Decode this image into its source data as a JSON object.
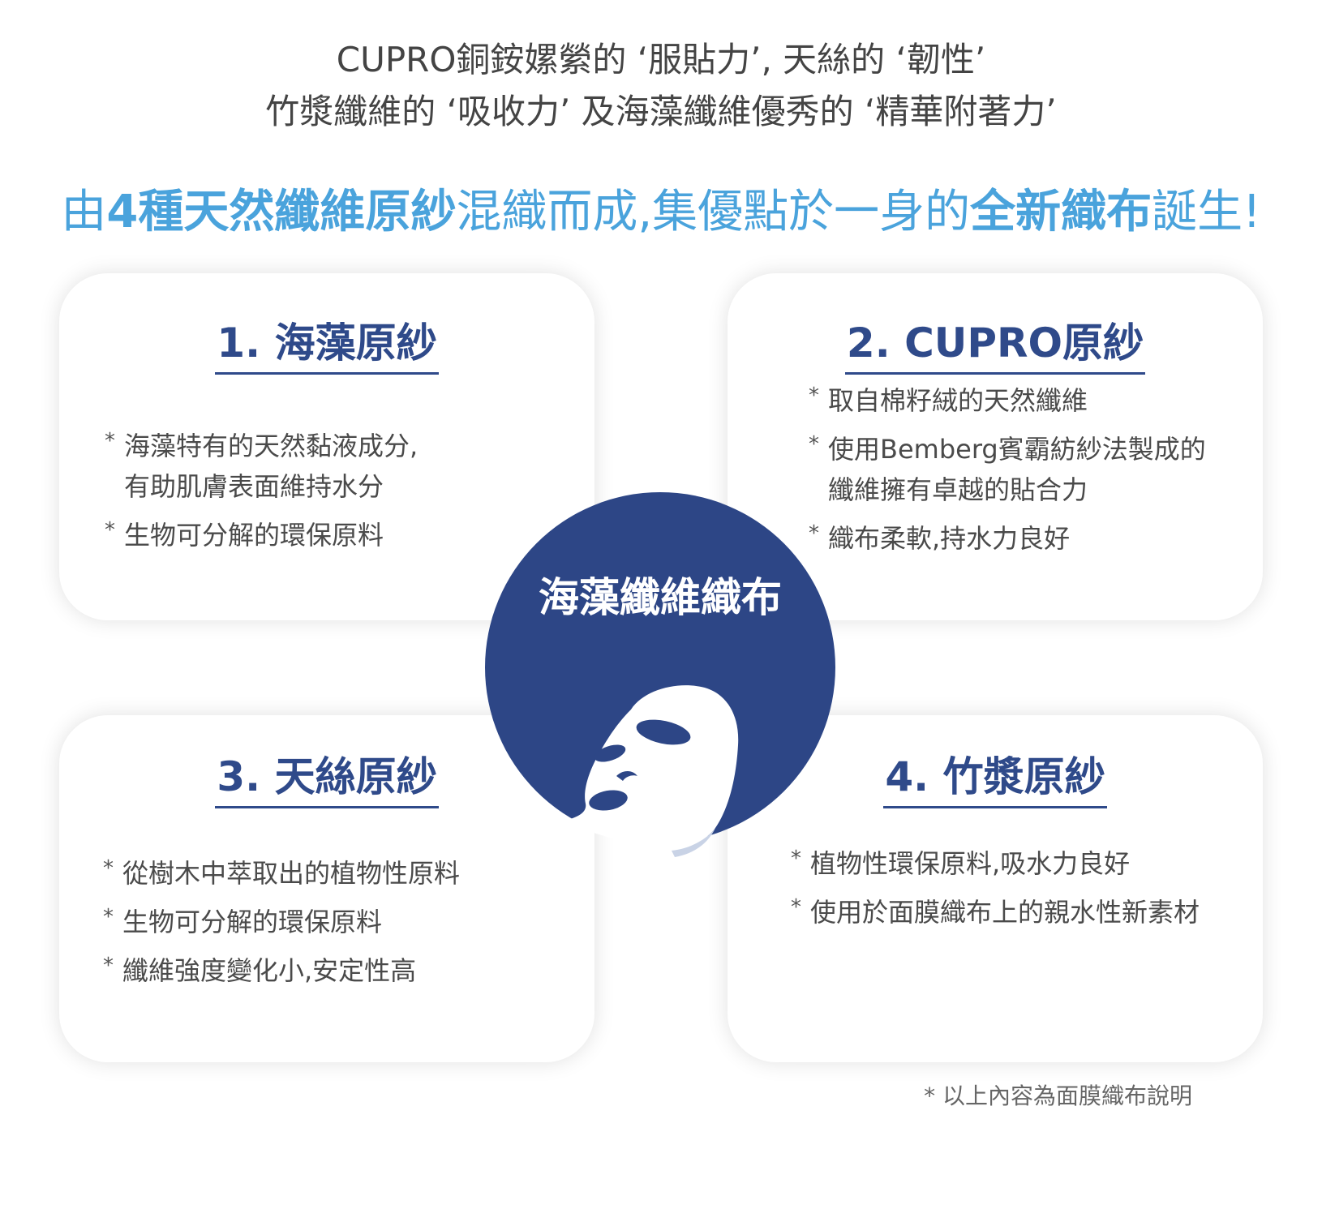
{
  "intro": {
    "line1": "CUPRO銅銨嫘縈的 ‘服貼力’, 天絲的 ‘韌性’",
    "line2": "竹漿纖維的 ‘吸收力’ 及海藻纖維優秀的 ‘精華附著力’"
  },
  "headline": {
    "part1": "由",
    "part2": "4種天然纖維原紗",
    "part3": "混織而成,集優點於一身的",
    "part4": "全新織布",
    "part5": "誕生!"
  },
  "cards": [
    {
      "title": "1. 海藻原紗",
      "bullets": [
        "海藻特有的天然黏液成分,\n有助肌膚表面維持水分",
        "生物可分解的環保原料"
      ]
    },
    {
      "title": "2. CUPRO原紗",
      "bullets": [
        "取自棉籽絨的天然纖維",
        "使用Bemberg賓霸紡紗法製成的\n纖維擁有卓越的貼合力",
        "織布柔軟,持水力良好"
      ]
    },
    {
      "title": "3. 天絲原紗",
      "bullets": [
        "從樹木中萃取出的植物性原料",
        "生物可分解的環保原料",
        "纖維強度變化小,安定性高"
      ]
    },
    {
      "title": "4. 竹漿原紗",
      "bullets": [
        "植物性環保原料,吸水力良好",
        "使用於面膜織布上的親水性新素材"
      ]
    }
  ],
  "center": {
    "label": "海藻纖維織布",
    "icon": "face-mask-icon"
  },
  "footnote": "以上內容為面膜織布說明",
  "colors": {
    "accent_blue": "#4aa3dc",
    "navy": "#2d4686",
    "title_navy": "#2f4a8a"
  }
}
